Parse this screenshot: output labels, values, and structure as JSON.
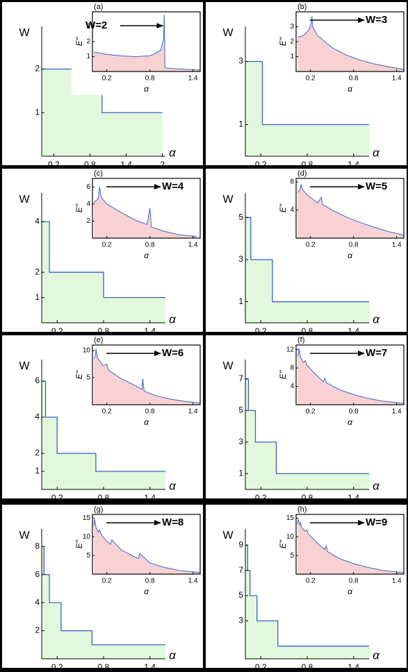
{
  "chart_data": [
    {
      "type": "step",
      "x_label": "α",
      "y_label": "W",
      "x": [
        0,
        1.0,
        1.0,
        2.0
      ],
      "values": [
        2,
        2,
        1,
        1
      ],
      "xlim": [
        0,
        2.05
      ],
      "ylim": [
        0,
        2.9
      ],
      "xticks": [
        0.2,
        0.8,
        1.4,
        2
      ],
      "yticks": [
        1,
        2
      ],
      "color": "#3a5fcd",
      "fill": "#e2f8dc"
    },
    {
      "type": "line",
      "panel_label": "(a)",
      "x_label": "α",
      "y_label": "E''",
      "annotation": "W=2",
      "x": [
        0.02,
        0.2,
        0.4,
        0.6,
        0.8,
        0.95,
        0.99,
        1.0,
        1.01,
        1.1,
        1.3,
        1.5
      ],
      "values": [
        1.3,
        1.15,
        1.05,
        1.0,
        1.05,
        1.4,
        2.2,
        3.8,
        0.25,
        0.2,
        0.15,
        0.1
      ],
      "xlim": [
        0,
        1.5
      ],
      "ylim": [
        0,
        4
      ],
      "xticks": [
        0.2,
        0.8,
        1.4
      ],
      "yticks": [
        1,
        2,
        3
      ],
      "color": "#4a6fd0",
      "fill": "#f8d2d2"
    },
    {
      "type": "step",
      "x_label": "α",
      "y_label": "W",
      "x": [
        0,
        0.22,
        0.22,
        1.6
      ],
      "values": [
        3,
        3,
        1,
        1
      ],
      "xlim": [
        0,
        1.6
      ],
      "ylim": [
        0,
        4
      ],
      "xticks": [
        0.2,
        0.8,
        1.4
      ],
      "yticks": [
        1,
        3
      ],
      "color": "#3a5fcd",
      "fill": "#e2f8dc"
    },
    {
      "type": "line",
      "panel_label": "(b)",
      "x_label": "α",
      "y_label": "E''",
      "annotation": "W=3",
      "x": [
        0.02,
        0.1,
        0.18,
        0.21,
        0.22,
        0.23,
        0.3,
        0.5,
        0.7,
        0.9,
        1.1,
        1.3,
        1.5
      ],
      "values": [
        2.3,
        2.4,
        2.8,
        3.2,
        3.7,
        3.0,
        2.4,
        1.6,
        1.1,
        0.75,
        0.5,
        0.3,
        0.15
      ],
      "xlim": [
        0,
        1.5
      ],
      "ylim": [
        0,
        4
      ],
      "xticks": [
        0.2,
        0.8,
        1.4
      ],
      "yticks": [
        1,
        2,
        3
      ],
      "color": "#4a6fd0",
      "fill": "#f8d2d2"
    },
    {
      "type": "step",
      "x_label": "α",
      "y_label": "W",
      "x": [
        0,
        0.1,
        0.1,
        0.8,
        0.8,
        1.6
      ],
      "values": [
        4,
        4,
        2,
        2,
        1,
        1
      ],
      "xlim": [
        0,
        1.6
      ],
      "ylim": [
        0,
        5
      ],
      "xticks": [
        0.2,
        0.8,
        1.4
      ],
      "yticks": [
        1,
        2,
        4
      ],
      "color": "#3a5fcd",
      "fill": "#e2f8dc"
    },
    {
      "type": "line",
      "panel_label": "(c)",
      "x_label": "α",
      "y_label": "E''",
      "annotation": "W=4",
      "x": [
        0.02,
        0.08,
        0.1,
        0.12,
        0.2,
        0.4,
        0.6,
        0.76,
        0.8,
        0.82,
        1.0,
        1.2,
        1.45
      ],
      "values": [
        4.2,
        4.6,
        6.0,
        4.8,
        4.0,
        3.0,
        2.1,
        1.6,
        3.5,
        1.3,
        0.8,
        0.4,
        0.2
      ],
      "xlim": [
        0,
        1.5
      ],
      "ylim": [
        0,
        7
      ],
      "xticks": [
        0.2,
        0.8,
        1.4
      ],
      "yticks": [
        2,
        4,
        6
      ],
      "color": "#4a6fd0",
      "fill": "#f8d2d2"
    },
    {
      "type": "step",
      "x_label": "α",
      "y_label": "W",
      "x": [
        0,
        0.07,
        0.07,
        0.35,
        0.35,
        1.6
      ],
      "values": [
        5,
        5,
        3,
        3,
        1,
        1
      ],
      "xlim": [
        0,
        1.6
      ],
      "ylim": [
        0,
        6
      ],
      "xticks": [
        0.2,
        0.8,
        1.4
      ],
      "yticks": [
        1,
        3,
        5
      ],
      "color": "#3a5fcd",
      "fill": "#e2f8dc"
    },
    {
      "type": "line",
      "panel_label": "(d)",
      "x_label": "α",
      "y_label": "E''",
      "annotation": "W=5",
      "x": [
        0.02,
        0.05,
        0.07,
        0.09,
        0.15,
        0.3,
        0.35,
        0.37,
        0.5,
        0.7,
        0.9,
        1.1,
        1.3,
        1.5
      ],
      "values": [
        6.5,
        6.8,
        7.6,
        6.9,
        6.2,
        5.0,
        5.8,
        4.8,
        4.0,
        3.0,
        2.2,
        1.5,
        0.9,
        0.4
      ],
      "xlim": [
        0,
        1.5
      ],
      "ylim": [
        0,
        8.5
      ],
      "xticks": [
        0.2,
        0.8,
        1.4
      ],
      "yticks": [
        4,
        8
      ],
      "color": "#4a6fd0",
      "fill": "#f8d2d2"
    },
    {
      "type": "step",
      "x_label": "α",
      "y_label": "W",
      "x": [
        0,
        0.05,
        0.05,
        0.2,
        0.2,
        0.7,
        0.7,
        1.6
      ],
      "values": [
        6,
        6,
        4,
        4,
        2,
        2,
        1,
        1
      ],
      "xlim": [
        0,
        1.6
      ],
      "ylim": [
        0,
        7
      ],
      "xticks": [
        0.2,
        0.8,
        1.4
      ],
      "yticks": [
        1,
        2,
        4,
        6
      ],
      "color": "#3a5fcd",
      "fill": "#e2f8dc"
    },
    {
      "type": "line",
      "panel_label": "(e)",
      "x_label": "α",
      "y_label": "E''",
      "annotation": "W=6",
      "x": [
        0.02,
        0.04,
        0.05,
        0.07,
        0.15,
        0.2,
        0.22,
        0.4,
        0.6,
        0.69,
        0.7,
        0.72,
        0.9,
        1.1,
        1.3,
        1.5
      ],
      "values": [
        8.5,
        9,
        10.3,
        8.6,
        7.2,
        7.5,
        6.4,
        4.8,
        3.5,
        2.8,
        4.8,
        2.5,
        1.6,
        1.0,
        0.6,
        0.3
      ],
      "xlim": [
        0,
        1.5
      ],
      "ylim": [
        0,
        11
      ],
      "xticks": [
        0.2,
        0.8,
        1.4
      ],
      "yticks": [
        5,
        10
      ],
      "color": "#4a6fd0",
      "fill": "#f8d2d2"
    },
    {
      "type": "step",
      "x_label": "α",
      "y_label": "W",
      "x": [
        0,
        0.04,
        0.04,
        0.13,
        0.13,
        0.4,
        0.4,
        1.6
      ],
      "values": [
        7,
        7,
        5,
        5,
        3,
        3,
        1,
        1
      ],
      "xlim": [
        0,
        1.6
      ],
      "ylim": [
        0,
        8
      ],
      "xticks": [
        0.2,
        0.8,
        1.4
      ],
      "yticks": [
        1,
        3,
        5,
        7
      ],
      "color": "#3a5fcd",
      "fill": "#e2f8dc"
    },
    {
      "type": "line",
      "panel_label": "(f)",
      "x_label": "α",
      "y_label": "E''",
      "annotation": "W=7",
      "x": [
        0.02,
        0.03,
        0.04,
        0.06,
        0.1,
        0.13,
        0.15,
        0.3,
        0.38,
        0.4,
        0.42,
        0.6,
        0.8,
        1.0,
        1.2,
        1.5
      ],
      "values": [
        10.5,
        11,
        12.3,
        10.5,
        9.2,
        9.6,
        8.6,
        6.2,
        5.0,
        5.8,
        4.8,
        3.3,
        2.2,
        1.4,
        0.8,
        0.3
      ],
      "xlim": [
        0,
        1.5
      ],
      "ylim": [
        0,
        13
      ],
      "xticks": [
        0.2,
        0.8,
        1.4
      ],
      "yticks": [
        4,
        8,
        12
      ],
      "color": "#4a6fd0",
      "fill": "#f8d2d2"
    },
    {
      "type": "step",
      "x_label": "α",
      "y_label": "W",
      "x": [
        0,
        0.03,
        0.03,
        0.1,
        0.1,
        0.25,
        0.25,
        0.65,
        0.65,
        1.6
      ],
      "values": [
        8,
        8,
        6,
        6,
        4,
        4,
        2,
        2,
        1,
        1
      ],
      "xlim": [
        0,
        1.6
      ],
      "ylim": [
        0,
        9
      ],
      "xticks": [
        0.2,
        0.8,
        1.4
      ],
      "yticks": [
        2,
        4,
        6,
        8
      ],
      "color": "#3a5fcd",
      "fill": "#e2f8dc"
    },
    {
      "type": "line",
      "panel_label": "(g)",
      "x_label": "α",
      "y_label": "E''",
      "annotation": "W=8",
      "x": [
        0.02,
        0.03,
        0.05,
        0.08,
        0.1,
        0.12,
        0.2,
        0.25,
        0.27,
        0.4,
        0.6,
        0.64,
        0.66,
        0.8,
        1.0,
        1.2,
        1.5
      ],
      "values": [
        13,
        14.8,
        12.5,
        11.3,
        11.8,
        10.6,
        8.8,
        8.0,
        9.2,
        6.5,
        4.5,
        4.2,
        5.5,
        3.0,
        1.8,
        1.0,
        0.4
      ],
      "xlim": [
        0,
        1.5
      ],
      "ylim": [
        0,
        16
      ],
      "xticks": [
        0.2,
        0.8,
        1.4
      ],
      "yticks": [
        5,
        10,
        15
      ],
      "color": "#4a6fd0",
      "fill": "#f8d2d2"
    },
    {
      "type": "step",
      "x_label": "α",
      "y_label": "W",
      "x": [
        0,
        0.03,
        0.03,
        0.06,
        0.06,
        0.15,
        0.15,
        0.42,
        0.42,
        1.6
      ],
      "values": [
        9,
        9,
        7,
        7,
        5,
        5,
        3,
        3,
        1,
        1
      ],
      "xlim": [
        0,
        1.6
      ],
      "ylim": [
        0,
        10
      ],
      "xticks": [
        0.2,
        0.8,
        1.4
      ],
      "yticks": [
        3,
        5,
        7,
        9
      ],
      "color": "#3a5fcd",
      "fill": "#e2f8dc"
    },
    {
      "type": "line",
      "panel_label": "(h)",
      "x_label": "α",
      "y_label": "E''",
      "annotation": "W=9",
      "x": [
        0.02,
        0.03,
        0.05,
        0.06,
        0.08,
        0.12,
        0.15,
        0.17,
        0.3,
        0.4,
        0.42,
        0.44,
        0.6,
        0.8,
        1.0,
        1.2,
        1.5
      ],
      "values": [
        13.5,
        14.8,
        13.2,
        13.8,
        12.5,
        11.5,
        11.9,
        10.8,
        8.2,
        6.6,
        7.6,
        6.0,
        4.2,
        2.8,
        1.8,
        1.0,
        0.4
      ],
      "xlim": [
        0,
        1.5
      ],
      "ylim": [
        0,
        16
      ],
      "xticks": [
        0.2,
        0.8,
        1.4
      ],
      "yticks": [
        5,
        10,
        15
      ],
      "color": "#4a6fd0",
      "fill": "#f8d2d2"
    }
  ]
}
